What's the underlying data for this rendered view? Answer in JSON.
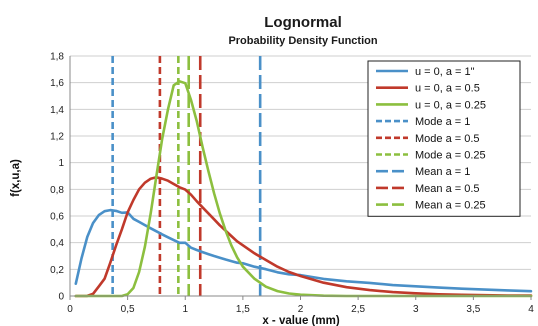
{
  "chart_data": {
    "type": "line",
    "title": "Lognormal",
    "subtitle": "Probability Density Function",
    "xlabel": "x - value (mm)",
    "ylabel": "f(x,u,a)",
    "xlim": [
      0,
      4
    ],
    "ylim": [
      0,
      1.8
    ],
    "x_ticks": [
      "0",
      "0,5",
      "1",
      "1,5",
      "2",
      "2,5",
      "3",
      "3,5",
      "4"
    ],
    "y_ticks": [
      "0",
      "0,2",
      "0,4",
      "0,6",
      "0,8",
      "1",
      "1,2",
      "1,4",
      "1,6",
      "1,8"
    ],
    "grid": "horizontal",
    "legend_position": "top-right",
    "x": [
      0.05,
      0.1,
      0.15,
      0.2,
      0.25,
      0.3,
      0.35,
      0.4,
      0.45,
      0.5,
      0.55,
      0.6,
      0.65,
      0.7,
      0.75,
      0.8,
      0.85,
      0.9,
      0.95,
      1.0,
      1.05,
      1.1,
      1.15,
      1.2,
      1.25,
      1.3,
      1.35,
      1.4,
      1.45,
      1.5,
      1.6,
      1.7,
      1.8,
      1.9,
      2.0,
      2.2,
      2.4,
      2.6,
      2.8,
      3.0,
      3.2,
      3.4,
      3.6,
      3.8,
      4.0
    ],
    "series": [
      {
        "name": "u = 0, a = 1\"",
        "color": "#4a90c8",
        "values": [
          0.092,
          0.282,
          0.443,
          0.547,
          0.607,
          0.636,
          0.644,
          0.638,
          0.624,
          0.627,
          0.579,
          0.556,
          0.532,
          0.508,
          0.485,
          0.462,
          0.44,
          0.419,
          0.399,
          0.399,
          0.362,
          0.345,
          0.329,
          0.314,
          0.3,
          0.287,
          0.274,
          0.262,
          0.25,
          0.245,
          0.22,
          0.201,
          0.178,
          0.163,
          0.157,
          0.128,
          0.11,
          0.098,
          0.082,
          0.073,
          0.063,
          0.055,
          0.048,
          0.042,
          0.036
        ]
      },
      {
        "name": "u = 0, a = 0.5",
        "color": "#c0392b",
        "values": [
          0.0,
          0.0,
          0.001,
          0.016,
          0.072,
          0.13,
          0.25,
          0.38,
          0.5,
          0.627,
          0.72,
          0.8,
          0.85,
          0.88,
          0.89,
          0.88,
          0.865,
          0.84,
          0.815,
          0.798,
          0.76,
          0.71,
          0.665,
          0.62,
          0.575,
          0.53,
          0.49,
          0.45,
          0.41,
          0.38,
          0.32,
          0.27,
          0.22,
          0.18,
          0.15,
          0.1,
          0.066,
          0.044,
          0.029,
          0.02,
          0.013,
          0.009,
          0.006,
          0.004,
          0.003
        ]
      },
      {
        "name": "u = 0, a = 0.25",
        "color": "#8cbf3f",
        "values": [
          0.0,
          0.0,
          0.0,
          0.0,
          0.0,
          0.0,
          0.0,
          0.0,
          0.0,
          0.013,
          0.06,
          0.18,
          0.37,
          0.62,
          0.9,
          1.18,
          1.4,
          1.58,
          1.61,
          1.596,
          1.47,
          1.31,
          1.12,
          0.94,
          0.77,
          0.62,
          0.49,
          0.38,
          0.29,
          0.22,
          0.13,
          0.07,
          0.037,
          0.019,
          0.01,
          0.002,
          0.0,
          0.0,
          0.0,
          0.0,
          0.0,
          0.0,
          0.0,
          0.0,
          0.0
        ]
      }
    ],
    "reference_lines": [
      {
        "name": "Mode a = 1",
        "color": "#4a90c8",
        "x": 0.37,
        "dash": "dashed"
      },
      {
        "name": "Mode a = 0.5",
        "color": "#c0392b",
        "x": 0.78,
        "dash": "dashed"
      },
      {
        "name": "Mode a = 0.25",
        "color": "#8cbf3f",
        "x": 0.94,
        "dash": "dashed"
      },
      {
        "name": "Mean a = 1",
        "color": "#4a90c8",
        "x": 1.65,
        "dash": "longdash"
      },
      {
        "name": "Mean a = 0.5",
        "color": "#c0392b",
        "x": 1.13,
        "dash": "longdash"
      },
      {
        "name": "Mean a = 0.25",
        "color": "#8cbf3f",
        "x": 1.03,
        "dash": "longdash"
      }
    ]
  }
}
